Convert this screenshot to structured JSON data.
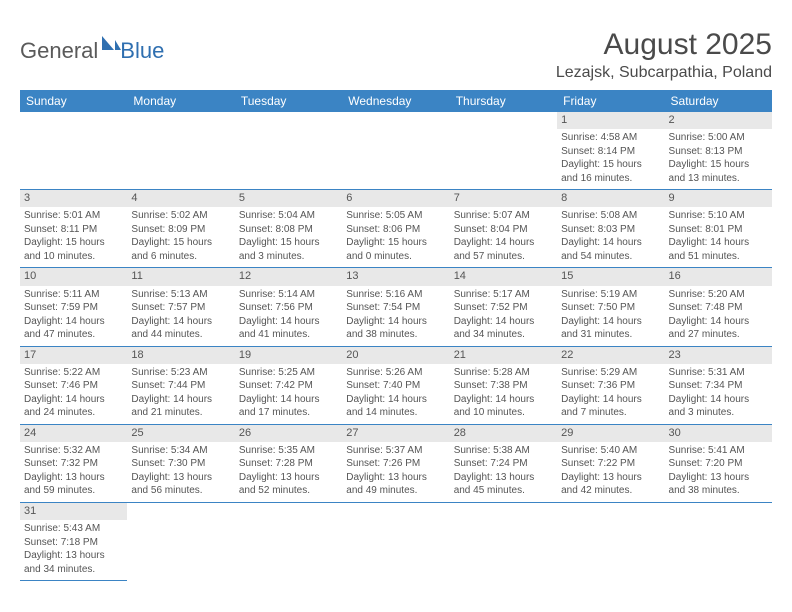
{
  "logo": {
    "text1": "General",
    "text2": "Blue"
  },
  "title": "August 2025",
  "location": "Lezajsk, Subcarpathia, Poland",
  "colors": {
    "header_bg": "#3b84c4",
    "header_fg": "#ffffff",
    "daynum_bg": "#e8e8e8",
    "border": "#3b84c4",
    "text": "#4a4a4a",
    "logo_blue": "#2f6fb0"
  },
  "weekdays": [
    "Sunday",
    "Monday",
    "Tuesday",
    "Wednesday",
    "Thursday",
    "Friday",
    "Saturday"
  ],
  "weeks": [
    [
      null,
      null,
      null,
      null,
      null,
      {
        "n": "1",
        "sr": "Sunrise: 4:58 AM",
        "ss": "Sunset: 8:14 PM",
        "d1": "Daylight: 15 hours",
        "d2": "and 16 minutes."
      },
      {
        "n": "2",
        "sr": "Sunrise: 5:00 AM",
        "ss": "Sunset: 8:13 PM",
        "d1": "Daylight: 15 hours",
        "d2": "and 13 minutes."
      }
    ],
    [
      {
        "n": "3",
        "sr": "Sunrise: 5:01 AM",
        "ss": "Sunset: 8:11 PM",
        "d1": "Daylight: 15 hours",
        "d2": "and 10 minutes."
      },
      {
        "n": "4",
        "sr": "Sunrise: 5:02 AM",
        "ss": "Sunset: 8:09 PM",
        "d1": "Daylight: 15 hours",
        "d2": "and 6 minutes."
      },
      {
        "n": "5",
        "sr": "Sunrise: 5:04 AM",
        "ss": "Sunset: 8:08 PM",
        "d1": "Daylight: 15 hours",
        "d2": "and 3 minutes."
      },
      {
        "n": "6",
        "sr": "Sunrise: 5:05 AM",
        "ss": "Sunset: 8:06 PM",
        "d1": "Daylight: 15 hours",
        "d2": "and 0 minutes."
      },
      {
        "n": "7",
        "sr": "Sunrise: 5:07 AM",
        "ss": "Sunset: 8:04 PM",
        "d1": "Daylight: 14 hours",
        "d2": "and 57 minutes."
      },
      {
        "n": "8",
        "sr": "Sunrise: 5:08 AM",
        "ss": "Sunset: 8:03 PM",
        "d1": "Daylight: 14 hours",
        "d2": "and 54 minutes."
      },
      {
        "n": "9",
        "sr": "Sunrise: 5:10 AM",
        "ss": "Sunset: 8:01 PM",
        "d1": "Daylight: 14 hours",
        "d2": "and 51 minutes."
      }
    ],
    [
      {
        "n": "10",
        "sr": "Sunrise: 5:11 AM",
        "ss": "Sunset: 7:59 PM",
        "d1": "Daylight: 14 hours",
        "d2": "and 47 minutes."
      },
      {
        "n": "11",
        "sr": "Sunrise: 5:13 AM",
        "ss": "Sunset: 7:57 PM",
        "d1": "Daylight: 14 hours",
        "d2": "and 44 minutes."
      },
      {
        "n": "12",
        "sr": "Sunrise: 5:14 AM",
        "ss": "Sunset: 7:56 PM",
        "d1": "Daylight: 14 hours",
        "d2": "and 41 minutes."
      },
      {
        "n": "13",
        "sr": "Sunrise: 5:16 AM",
        "ss": "Sunset: 7:54 PM",
        "d1": "Daylight: 14 hours",
        "d2": "and 38 minutes."
      },
      {
        "n": "14",
        "sr": "Sunrise: 5:17 AM",
        "ss": "Sunset: 7:52 PM",
        "d1": "Daylight: 14 hours",
        "d2": "and 34 minutes."
      },
      {
        "n": "15",
        "sr": "Sunrise: 5:19 AM",
        "ss": "Sunset: 7:50 PM",
        "d1": "Daylight: 14 hours",
        "d2": "and 31 minutes."
      },
      {
        "n": "16",
        "sr": "Sunrise: 5:20 AM",
        "ss": "Sunset: 7:48 PM",
        "d1": "Daylight: 14 hours",
        "d2": "and 27 minutes."
      }
    ],
    [
      {
        "n": "17",
        "sr": "Sunrise: 5:22 AM",
        "ss": "Sunset: 7:46 PM",
        "d1": "Daylight: 14 hours",
        "d2": "and 24 minutes."
      },
      {
        "n": "18",
        "sr": "Sunrise: 5:23 AM",
        "ss": "Sunset: 7:44 PM",
        "d1": "Daylight: 14 hours",
        "d2": "and 21 minutes."
      },
      {
        "n": "19",
        "sr": "Sunrise: 5:25 AM",
        "ss": "Sunset: 7:42 PM",
        "d1": "Daylight: 14 hours",
        "d2": "and 17 minutes."
      },
      {
        "n": "20",
        "sr": "Sunrise: 5:26 AM",
        "ss": "Sunset: 7:40 PM",
        "d1": "Daylight: 14 hours",
        "d2": "and 14 minutes."
      },
      {
        "n": "21",
        "sr": "Sunrise: 5:28 AM",
        "ss": "Sunset: 7:38 PM",
        "d1": "Daylight: 14 hours",
        "d2": "and 10 minutes."
      },
      {
        "n": "22",
        "sr": "Sunrise: 5:29 AM",
        "ss": "Sunset: 7:36 PM",
        "d1": "Daylight: 14 hours",
        "d2": "and 7 minutes."
      },
      {
        "n": "23",
        "sr": "Sunrise: 5:31 AM",
        "ss": "Sunset: 7:34 PM",
        "d1": "Daylight: 14 hours",
        "d2": "and 3 minutes."
      }
    ],
    [
      {
        "n": "24",
        "sr": "Sunrise: 5:32 AM",
        "ss": "Sunset: 7:32 PM",
        "d1": "Daylight: 13 hours",
        "d2": "and 59 minutes."
      },
      {
        "n": "25",
        "sr": "Sunrise: 5:34 AM",
        "ss": "Sunset: 7:30 PM",
        "d1": "Daylight: 13 hours",
        "d2": "and 56 minutes."
      },
      {
        "n": "26",
        "sr": "Sunrise: 5:35 AM",
        "ss": "Sunset: 7:28 PM",
        "d1": "Daylight: 13 hours",
        "d2": "and 52 minutes."
      },
      {
        "n": "27",
        "sr": "Sunrise: 5:37 AM",
        "ss": "Sunset: 7:26 PM",
        "d1": "Daylight: 13 hours",
        "d2": "and 49 minutes."
      },
      {
        "n": "28",
        "sr": "Sunrise: 5:38 AM",
        "ss": "Sunset: 7:24 PM",
        "d1": "Daylight: 13 hours",
        "d2": "and 45 minutes."
      },
      {
        "n": "29",
        "sr": "Sunrise: 5:40 AM",
        "ss": "Sunset: 7:22 PM",
        "d1": "Daylight: 13 hours",
        "d2": "and 42 minutes."
      },
      {
        "n": "30",
        "sr": "Sunrise: 5:41 AM",
        "ss": "Sunset: 7:20 PM",
        "d1": "Daylight: 13 hours",
        "d2": "and 38 minutes."
      }
    ],
    [
      {
        "n": "31",
        "sr": "Sunrise: 5:43 AM",
        "ss": "Sunset: 7:18 PM",
        "d1": "Daylight: 13 hours",
        "d2": "and 34 minutes."
      },
      null,
      null,
      null,
      null,
      null,
      null
    ]
  ]
}
